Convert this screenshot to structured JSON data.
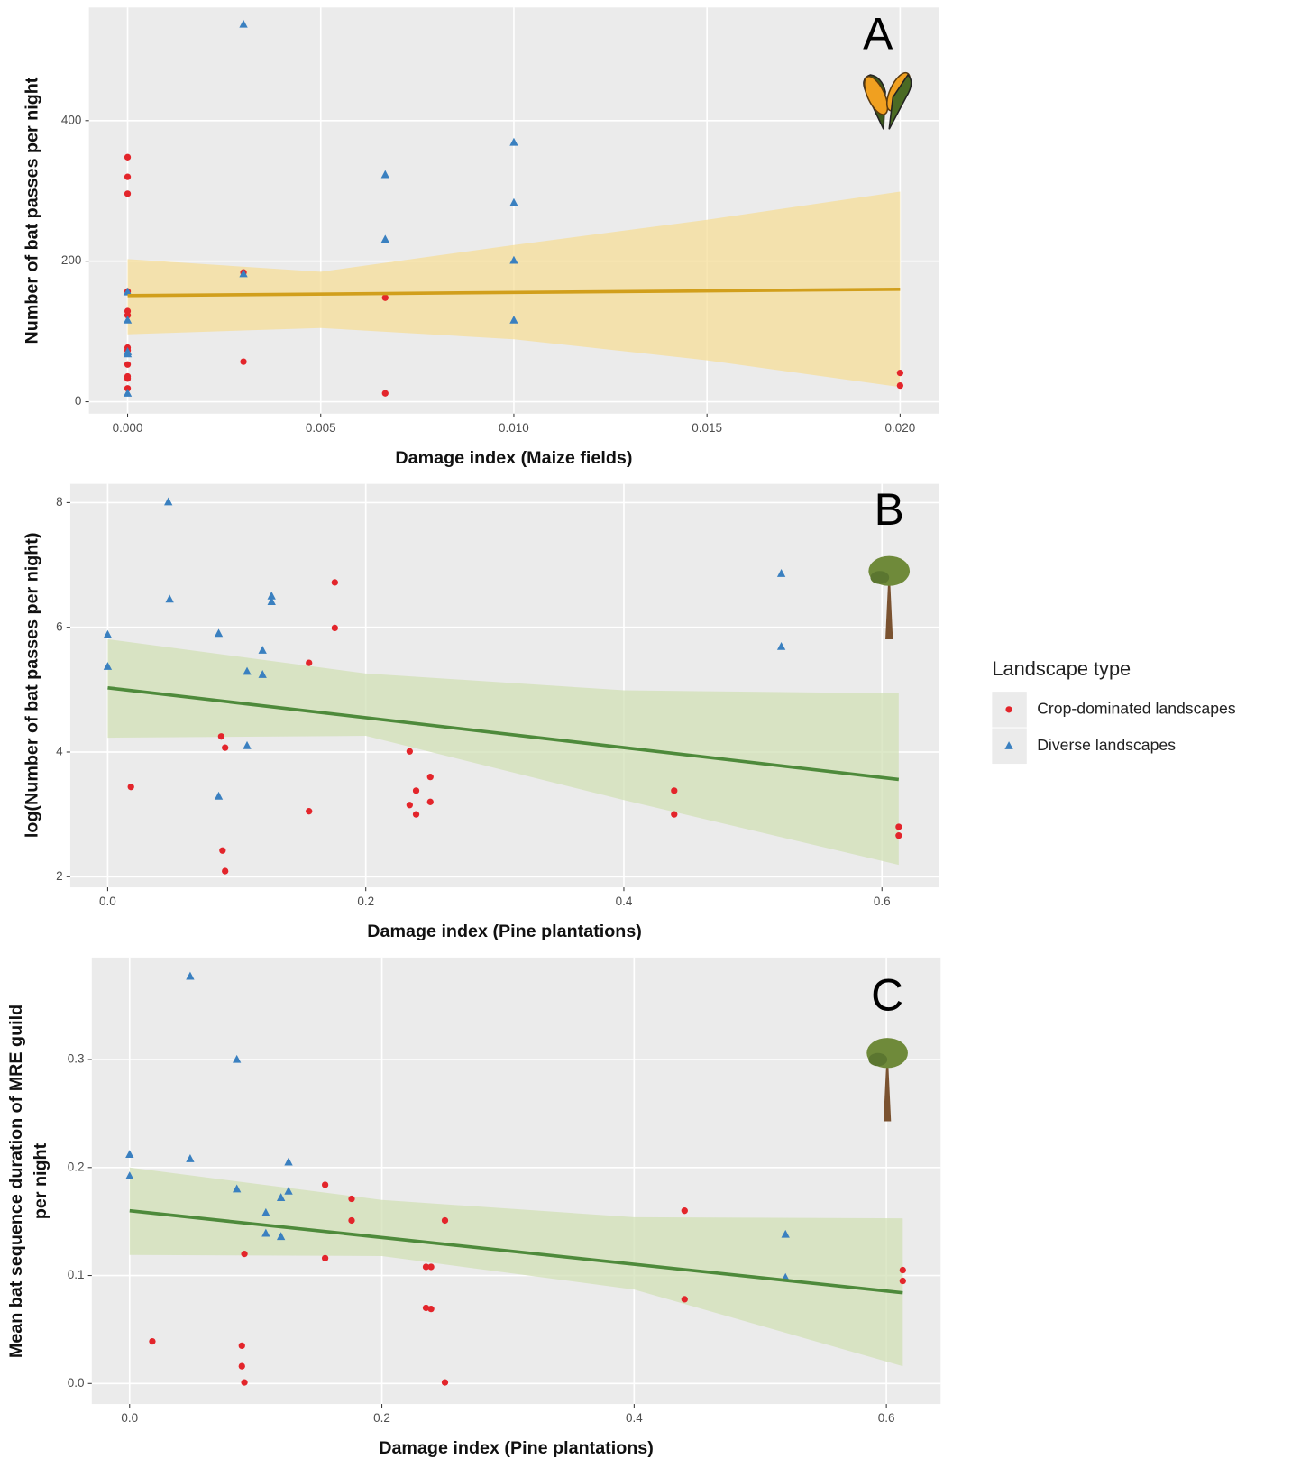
{
  "chart_data": [
    {
      "type": "scatter",
      "title": "A",
      "xlabel": "Damage index (Maize fields)",
      "ylabel": [
        "Number of bat passes per night"
      ],
      "xlim": [
        -0.001,
        0.021
      ],
      "ylim": [
        -17,
        561
      ],
      "xticks": [
        {
          "value": 0,
          "label": "0.000"
        },
        {
          "value": 0.005,
          "label": "0.005"
        },
        {
          "value": 0.01,
          "label": "0.010"
        },
        {
          "value": 0.015,
          "label": "0.015"
        },
        {
          "value": 0.02,
          "label": "0.020"
        }
      ],
      "yticks": [
        0,
        200,
        400
      ],
      "grid": true,
      "series": [
        {
          "name": "Crop-dominated landscapes",
          "color": "#e3252b",
          "marker": "circle",
          "x": [
            0,
            0,
            0,
            0,
            0,
            0,
            0,
            0,
            0,
            0,
            0,
            0,
            0.003,
            0.003,
            0.00667,
            0.00667,
            0.02,
            0.02
          ],
          "values": [
            348,
            320,
            296,
            157,
            129,
            123,
            77,
            73,
            53,
            36,
            33,
            19,
            184,
            57,
            148,
            12,
            41,
            23
          ]
        },
        {
          "name": "Diverse landscapes",
          "color": "#3a80c0",
          "marker": "triangle",
          "x": [
            0,
            0,
            0,
            0,
            0,
            0.003,
            0.003,
            0.00667,
            0.00667,
            0.01,
            0.01,
            0.01,
            0.01
          ],
          "values": [
            156,
            116,
            71,
            68,
            12,
            537,
            182,
            323,
            231,
            369,
            283,
            201,
            116
          ]
        }
      ],
      "fit": {
        "color": "#d19f1c",
        "x": [
          0,
          0.02
        ],
        "values": [
          151,
          160
        ]
      },
      "band": {
        "color": "#f6dd98",
        "x": [
          0,
          0.005,
          0.01,
          0.015,
          0.02
        ],
        "upper": [
          203,
          185,
          223,
          259,
          299
        ],
        "lower": [
          96,
          105,
          89,
          59,
          21
        ]
      }
    },
    {
      "type": "scatter",
      "title": "B",
      "xlabel": "Damage index (Pine plantations)",
      "ylabel": [
        "log(Number of bat passes per night)"
      ],
      "legend_title": "Landscape type",
      "xlim": [
        -0.029,
        0.644
      ],
      "ylim": [
        1.83,
        8.3
      ],
      "xticks": [
        {
          "value": 0,
          "label": "0.0"
        },
        0.2,
        0.4,
        0.6
      ],
      "yticks": [
        2,
        4,
        6,
        8
      ],
      "grid": true,
      "series": [
        {
          "name": "Crop-dominated landscapes",
          "color": "#e3252b",
          "marker": "circle",
          "x": [
            0.176,
            0.176,
            0.156,
            0.018,
            0.088,
            0.091,
            0.089,
            0.091,
            0.156,
            0.234,
            0.239,
            0.25,
            0.234,
            0.239,
            0.25,
            0.439,
            0.439,
            0.613,
            0.613
          ],
          "values": [
            6.72,
            5.99,
            5.43,
            3.44,
            4.25,
            4.07,
            2.42,
            2.09,
            3.05,
            4.01,
            3.38,
            3.6,
            3.15,
            3.0,
            3.2,
            3.38,
            3.0,
            2.8,
            2.66
          ]
        },
        {
          "name": "Diverse landscapes",
          "color": "#3a80c0",
          "marker": "triangle",
          "x": [
            0.047,
            0.048,
            0,
            0,
            0.086,
            0.127,
            0.127,
            0.12,
            0.108,
            0.12,
            0.108,
            0.086,
            0.522,
            0.522
          ],
          "values": [
            8.01,
            6.45,
            5.88,
            5.37,
            5.9,
            6.5,
            6.41,
            5.63,
            5.29,
            5.24,
            4.1,
            3.29,
            6.86,
            5.69
          ]
        }
      ],
      "fit": {
        "color": "#4e8a3b",
        "x": [
          0,
          0.613
        ],
        "values": [
          5.03,
          3.56
        ]
      },
      "band": {
        "color": "#d2e0b6",
        "x": [
          0,
          0.2,
          0.4,
          0.613
        ],
        "upper": [
          5.81,
          5.26,
          4.99,
          4.94
        ],
        "lower": [
          4.23,
          4.26,
          3.23,
          2.19
        ]
      }
    },
    {
      "type": "scatter",
      "title": "C",
      "xlabel": "Damage index (Pine plantations)",
      "ylabel": [
        "Mean bat sequence duration of MRE guild",
        "per night"
      ],
      "xlim": [
        -0.03,
        0.643
      ],
      "ylim": [
        -0.019,
        0.3945
      ],
      "xticks": [
        {
          "value": 0,
          "label": "0.0"
        },
        0.2,
        0.4,
        0.6
      ],
      "yticks": [
        {
          "value": 0,
          "label": "0.0"
        },
        0.1,
        0.2,
        0.3
      ],
      "grid": true,
      "series": [
        {
          "name": "Crop-dominated landscapes",
          "color": "#e3252b",
          "marker": "circle",
          "x": [
            0.155,
            0.176,
            0.176,
            0.25,
            0.44,
            0.091,
            0.155,
            0.235,
            0.239,
            0.018,
            0.089,
            0.089,
            0.091,
            0.235,
            0.239,
            0.25,
            0.44,
            0.613,
            0.613
          ],
          "values": [
            0.184,
            0.171,
            0.151,
            0.151,
            0.16,
            0.12,
            0.116,
            0.108,
            0.108,
            0.039,
            0.035,
            0.016,
            0.001,
            0.07,
            0.069,
            0.001,
            0.078,
            0.105,
            0.095
          ]
        },
        {
          "name": "Diverse landscapes",
          "color": "#3a80c0",
          "marker": "triangle",
          "x": [
            0.048,
            0.085,
            0,
            0,
            0.048,
            0.126,
            0.085,
            0.126,
            0.12,
            0.108,
            0.108,
            0.12,
            0.52,
            0.52
          ],
          "values": [
            0.377,
            0.3,
            0.212,
            0.192,
            0.208,
            0.205,
            0.18,
            0.178,
            0.172,
            0.158,
            0.139,
            0.136,
            0.138,
            0.098
          ]
        }
      ],
      "fit": {
        "color": "#4e8a3b",
        "x": [
          0,
          0.613
        ],
        "values": [
          0.16,
          0.084
        ]
      },
      "band": {
        "color": "#d2e0b6",
        "x": [
          0,
          0.2,
          0.4,
          0.613
        ],
        "upper": [
          0.2,
          0.17,
          0.154,
          0.153
        ],
        "lower": [
          0.119,
          0.118,
          0.087,
          0.016
        ]
      }
    }
  ]
}
